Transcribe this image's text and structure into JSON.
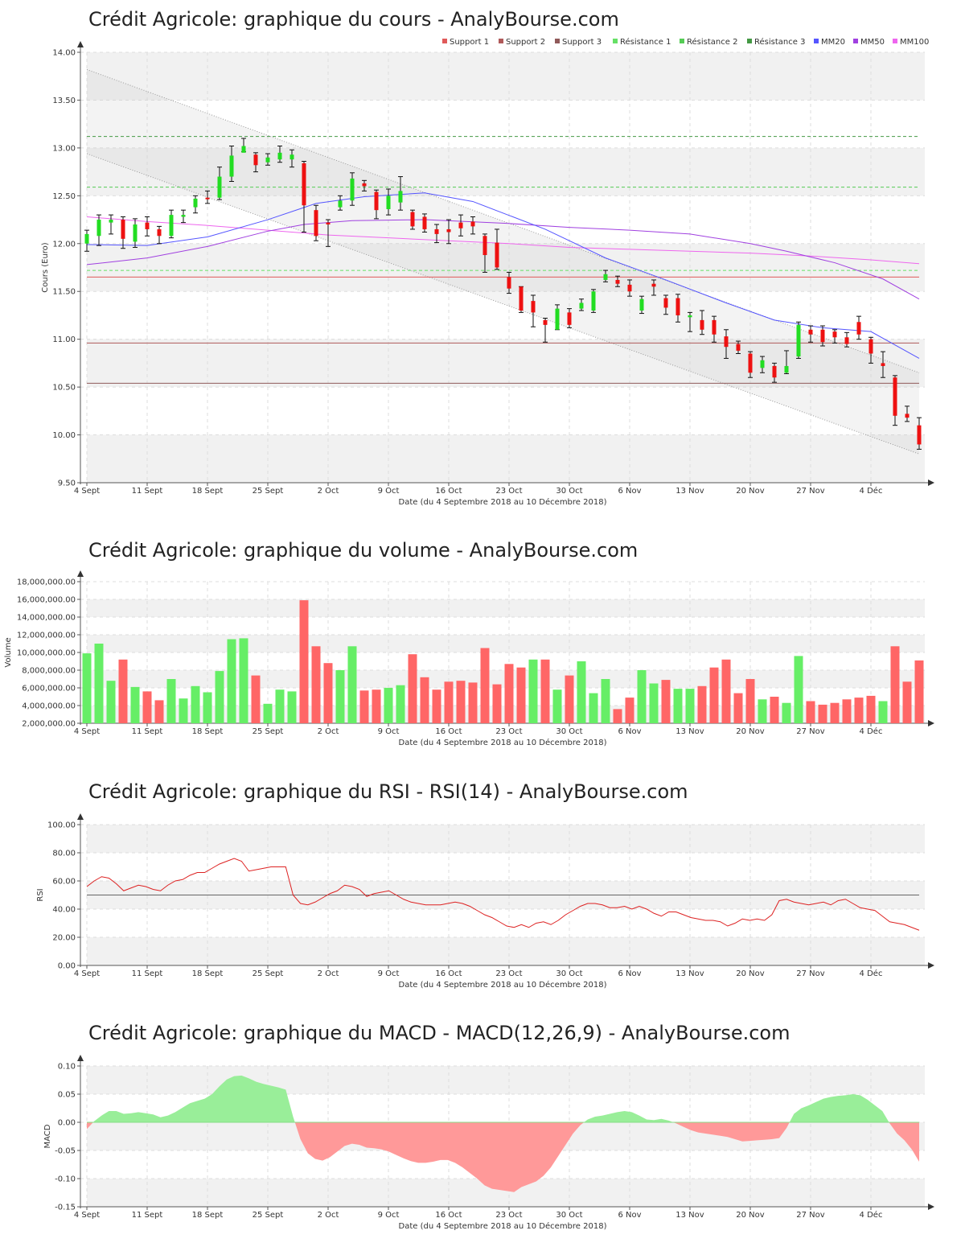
{
  "chart_data": [
    {
      "type": "candlestick",
      "title": "Crédit Agricole: graphique du cours - AnalyBourse.com",
      "xlabel": "Date (du 4 Septembre 2018 au 10 Décembre 2018)",
      "ylabel": "Cours (Euro)",
      "ylim": [
        9.5,
        14.0
      ],
      "yticks": [
        "9.50",
        "10.00",
        "10.50",
        "11.00",
        "11.50",
        "12.00",
        "12.50",
        "13.00",
        "13.50",
        "14.00"
      ],
      "xticks": [
        "4 Sept",
        "11 Sept",
        "18 Sept",
        "25 Sept",
        "2 Oct",
        "9 Oct",
        "16 Oct",
        "23 Oct",
        "30 Oct",
        "6 Nov",
        "13 Nov",
        "20 Nov",
        "27 Nov",
        "4 Déc"
      ],
      "legend": [
        {
          "name": "Support 1",
          "color": "#e05a5a"
        },
        {
          "name": "Support 2",
          "color": "#b05a5a"
        },
        {
          "name": "Support 3",
          "color": "#905a5a"
        },
        {
          "name": "Résistance 1",
          "color": "#66e066"
        },
        {
          "name": "Résistance 2",
          "color": "#55cc55"
        },
        {
          "name": "Résistance 3",
          "color": "#449944"
        },
        {
          "name": "MM20",
          "color": "#5555ff"
        },
        {
          "name": "MM50",
          "color": "#a040e0"
        },
        {
          "name": "MM100",
          "color": "#ee66ee"
        }
      ],
      "levels": {
        "support_1": 11.65,
        "support_2": 10.96,
        "support_3": 10.54,
        "resistance_1": 11.72,
        "resistance_2": 12.59,
        "resistance_3": 13.12
      },
      "colors": {
        "up": "#22dd22",
        "down": "#ee1111"
      },
      "candles": [
        [
          12.0,
          12.1,
          12.14,
          11.92
        ],
        [
          12.08,
          12.25,
          12.3,
          11.98
        ],
        [
          12.22,
          12.25,
          12.3,
          12.1
        ],
        [
          12.25,
          12.05,
          12.28,
          11.95
        ],
        [
          12.02,
          12.2,
          12.26,
          11.96
        ],
        [
          12.22,
          12.15,
          12.28,
          12.08
        ],
        [
          12.15,
          12.08,
          12.18,
          12.0
        ],
        [
          12.08,
          12.3,
          12.35,
          12.06
        ],
        [
          12.28,
          12.3,
          12.35,
          12.22
        ],
        [
          12.38,
          12.47,
          12.5,
          12.32
        ],
        [
          12.48,
          12.47,
          12.55,
          12.42
        ],
        [
          12.48,
          12.7,
          12.8,
          12.46
        ],
        [
          12.7,
          12.92,
          13.02,
          12.65
        ],
        [
          12.95,
          13.02,
          13.1,
          12.96
        ],
        [
          12.93,
          12.82,
          12.95,
          12.75
        ],
        [
          12.85,
          12.9,
          12.94,
          12.82
        ],
        [
          12.88,
          12.95,
          13.02,
          12.85
        ],
        [
          12.88,
          12.93,
          12.98,
          12.8
        ],
        [
          12.84,
          12.4,
          12.86,
          12.12
        ],
        [
          12.35,
          12.08,
          12.4,
          12.03
        ],
        [
          12.22,
          12.2,
          12.25,
          11.97
        ],
        [
          12.38,
          12.45,
          12.5,
          12.35
        ],
        [
          12.45,
          12.68,
          12.74,
          12.4
        ],
        [
          12.63,
          12.6,
          12.66,
          12.55
        ],
        [
          12.54,
          12.35,
          12.56,
          12.26
        ],
        [
          12.36,
          12.5,
          12.57,
          12.3
        ],
        [
          12.43,
          12.55,
          12.7,
          12.35
        ],
        [
          12.33,
          12.18,
          12.35,
          12.15
        ],
        [
          12.28,
          12.15,
          12.31,
          12.12
        ],
        [
          12.15,
          12.1,
          12.2,
          12.01
        ],
        [
          12.15,
          12.12,
          12.25,
          12.0
        ],
        [
          12.22,
          12.16,
          12.3,
          12.08
        ],
        [
          12.23,
          12.18,
          12.28,
          12.1
        ],
        [
          12.08,
          11.88,
          12.1,
          11.7
        ],
        [
          12.01,
          11.75,
          12.15,
          11.73
        ],
        [
          11.65,
          11.53,
          11.7,
          11.48
        ],
        [
          11.55,
          11.3,
          11.55,
          11.28
        ],
        [
          11.4,
          11.28,
          11.46,
          11.13
        ],
        [
          11.2,
          11.15,
          11.22,
          10.97
        ],
        [
          11.1,
          11.32,
          11.36,
          11.1
        ],
        [
          11.28,
          11.15,
          11.32,
          11.12
        ],
        [
          11.32,
          11.38,
          11.42,
          11.3
        ],
        [
          11.3,
          11.5,
          11.52,
          11.28
        ],
        [
          11.62,
          11.68,
          11.72,
          11.6
        ],
        [
          11.62,
          11.58,
          11.66,
          11.55
        ],
        [
          11.57,
          11.5,
          11.62,
          11.45
        ],
        [
          11.3,
          11.42,
          11.45,
          11.27
        ],
        [
          11.58,
          11.55,
          11.62,
          11.46
        ],
        [
          11.43,
          11.33,
          11.46,
          11.26
        ],
        [
          11.43,
          11.25,
          11.47,
          11.18
        ],
        [
          11.23,
          11.25,
          11.28,
          11.08
        ],
        [
          11.2,
          11.1,
          11.3,
          11.05
        ],
        [
          11.2,
          11.05,
          11.24,
          10.97
        ],
        [
          11.03,
          10.92,
          11.1,
          10.8
        ],
        [
          10.95,
          10.88,
          10.98,
          10.85
        ],
        [
          10.85,
          10.65,
          10.87,
          10.6
        ],
        [
          10.7,
          10.78,
          10.82,
          10.65
        ],
        [
          10.72,
          10.6,
          10.75,
          10.55
        ],
        [
          10.65,
          10.72,
          10.88,
          10.64
        ],
        [
          10.82,
          11.15,
          11.18,
          10.8
        ],
        [
          11.1,
          11.05,
          11.14,
          10.97
        ],
        [
          11.1,
          10.97,
          11.14,
          10.93
        ],
        [
          11.08,
          11.02,
          11.1,
          10.96
        ],
        [
          11.02,
          10.95,
          11.07,
          10.92
        ],
        [
          11.18,
          11.05,
          11.24,
          11.0
        ],
        [
          11.0,
          10.85,
          11.02,
          10.75
        ],
        [
          10.75,
          10.72,
          10.87,
          10.6
        ],
        [
          10.6,
          10.2,
          10.62,
          10.1
        ],
        [
          10.22,
          10.18,
          10.3,
          10.14
        ],
        [
          10.1,
          9.9,
          10.18,
          9.85
        ]
      ],
      "ma20": [
        [
          0,
          11.99
        ],
        [
          5,
          11.98
        ],
        [
          10,
          12.07
        ],
        [
          15,
          12.25
        ],
        [
          19,
          12.42
        ],
        [
          23,
          12.49
        ],
        [
          28,
          12.53
        ],
        [
          32,
          12.44
        ],
        [
          38,
          12.15
        ],
        [
          43,
          11.85
        ],
        [
          48,
          11.62
        ],
        [
          53,
          11.38
        ],
        [
          57,
          11.2
        ],
        [
          61,
          11.12
        ],
        [
          65,
          11.08
        ],
        [
          69,
          10.8
        ]
      ],
      "ma50": [
        [
          0,
          11.78
        ],
        [
          5,
          11.85
        ],
        [
          10,
          11.97
        ],
        [
          15,
          12.13
        ],
        [
          18,
          12.2
        ],
        [
          22,
          12.24
        ],
        [
          28,
          12.25
        ],
        [
          35,
          12.21
        ],
        [
          40,
          12.17
        ],
        [
          45,
          12.14
        ],
        [
          50,
          12.1
        ],
        [
          55,
          12.0
        ],
        [
          58,
          11.92
        ],
        [
          62,
          11.8
        ],
        [
          66,
          11.63
        ],
        [
          69,
          11.42
        ]
      ],
      "ma100": [
        [
          0,
          12.28
        ],
        [
          5,
          12.23
        ],
        [
          10,
          12.19
        ],
        [
          15,
          12.14
        ],
        [
          20,
          12.09
        ],
        [
          25,
          12.06
        ],
        [
          30,
          12.03
        ],
        [
          35,
          12.0
        ],
        [
          40,
          11.96
        ],
        [
          45,
          11.94
        ],
        [
          50,
          11.92
        ],
        [
          55,
          11.9
        ],
        [
          60,
          11.87
        ],
        [
          65,
          11.83
        ],
        [
          69,
          11.79
        ]
      ],
      "channel": {
        "upper": [
          [
            0,
            13.82
          ],
          [
            69,
            10.65
          ]
        ],
        "lower": [
          [
            0,
            12.94
          ],
          [
            69,
            9.8
          ]
        ]
      }
    },
    {
      "type": "bar",
      "title": "Crédit Agricole: graphique du volume - AnalyBourse.com",
      "xlabel": "Date (du 4 Septembre 2018 au 10 Décembre 2018)",
      "ylabel": "Volume",
      "ylim": [
        2000000,
        18000000
      ],
      "yticks": [
        "2,000,000.00",
        "4,000,000.00",
        "6,000,000.00",
        "8,000,000.00",
        "10,000,000.00",
        "12,000,000.00",
        "14,000,000.00",
        "16,000,000.00",
        "18,000,000.00"
      ],
      "xticks": [
        "4 Sept",
        "11 Sept",
        "18 Sept",
        "25 Sept",
        "2 Oct",
        "9 Oct",
        "16 Oct",
        "23 Oct",
        "30 Oct",
        "6 Nov",
        "13 Nov",
        "20 Nov",
        "27 Nov",
        "4 Déc"
      ],
      "colors": {
        "up": "#66ee66",
        "down": "#ff6666"
      },
      "values": [
        9900000,
        11000000,
        6800000,
        9200000,
        6100000,
        5600000,
        4600000,
        7000000,
        4800000,
        6200000,
        5500000,
        7900000,
        11500000,
        11600000,
        7400000,
        4200000,
        5800000,
        5600000,
        15900000,
        10700000,
        8800000,
        8000000,
        10700000,
        5700000,
        5800000,
        6000000,
        6300000,
        9800000,
        7200000,
        5800000,
        6700000,
        6800000,
        6600000,
        10500000,
        6400000,
        8700000,
        8300000,
        9200000,
        9200000,
        5800000,
        7400000,
        9000000,
        5400000,
        7000000,
        3600000,
        4900000,
        8000000,
        6500000,
        6900000,
        5900000,
        5900000,
        6200000,
        8300000,
        9200000,
        5400000,
        7000000,
        4700000,
        5000000,
        4300000,
        9600000,
        4500000,
        4100000,
        4300000,
        4700000,
        4900000,
        5100000,
        4500000,
        10700000,
        6700000,
        9100000
      ],
      "up": [
        true,
        true,
        true,
        false,
        true,
        false,
        false,
        true,
        true,
        true,
        true,
        true,
        true,
        true,
        false,
        true,
        true,
        true,
        false,
        false,
        false,
        true,
        true,
        false,
        false,
        true,
        true,
        false,
        false,
        false,
        false,
        false,
        false,
        false,
        false,
        false,
        false,
        true,
        false,
        true,
        false,
        true,
        true,
        true,
        false,
        false,
        true,
        true,
        false,
        true,
        true,
        false,
        false,
        false,
        false,
        false,
        true,
        false,
        true,
        true,
        false,
        false,
        false,
        false,
        false,
        false,
        true,
        false,
        false,
        false
      ]
    },
    {
      "type": "line",
      "title": "Crédit Agricole: graphique du RSI - RSI(14) - AnalyBourse.com",
      "xlabel": "Date (du 4 Septembre 2018 au 10 Décembre 2018)",
      "ylabel": "RSI",
      "ylim": [
        0,
        100
      ],
      "yticks": [
        "0.00",
        "20.00",
        "40.00",
        "60.00",
        "80.00",
        "100.00"
      ],
      "xticks": [
        "4 Sept",
        "11 Sept",
        "18 Sept",
        "25 Sept",
        "2 Oct",
        "9 Oct",
        "16 Oct",
        "23 Oct",
        "30 Oct",
        "6 Nov",
        "13 Nov",
        "20 Nov",
        "27 Nov",
        "4 Déc"
      ],
      "reference_line": 50,
      "series": [
        {
          "color": "#dd2222",
          "values": [
            56,
            60,
            63,
            62,
            58,
            53,
            55,
            57,
            56,
            54,
            53,
            57,
            60,
            61,
            64,
            66,
            66,
            69,
            72,
            74,
            76,
            74,
            67,
            68,
            69,
            70,
            70,
            70,
            50,
            44,
            43,
            45,
            48,
            51,
            53,
            57,
            56,
            54,
            49,
            51,
            52,
            53,
            50,
            47,
            45,
            44,
            43,
            43,
            43,
            44,
            45,
            44,
            42,
            39,
            36,
            34,
            31,
            28,
            27,
            29,
            27,
            30,
            31,
            29,
            32,
            36,
            39,
            42,
            44,
            44,
            43,
            41,
            41,
            42,
            40,
            42,
            40,
            37,
            35,
            38,
            38,
            36,
            34,
            33,
            32,
            32,
            31,
            28,
            30,
            33,
            32,
            33,
            32,
            36,
            46,
            47,
            45,
            44,
            43,
            44,
            45,
            43,
            46,
            47,
            44,
            41,
            40,
            39,
            35,
            31,
            30,
            29,
            27,
            25
          ]
        }
      ]
    },
    {
      "type": "area",
      "title": "Crédit Agricole: graphique du MACD - MACD(12,26,9) - AnalyBourse.com",
      "xlabel": "Date (du 4 Septembre 2018 au 10 Décembre 2018)",
      "ylabel": "MACD",
      "ylim": [
        -0.15,
        0.1
      ],
      "yticks": [
        "-0.15",
        "-0.10",
        "-0.05",
        "0.00",
        "0.05",
        "0.10"
      ],
      "xticks": [
        "4 Sept",
        "11 Sept",
        "18 Sept",
        "25 Sept",
        "2 Oct",
        "9 Oct",
        "16 Oct",
        "23 Oct",
        "30 Oct",
        "6 Nov",
        "13 Nov",
        "20 Nov",
        "27 Nov",
        "4 Déc"
      ],
      "colors": {
        "positive": "#99ee99",
        "negative": "#ff9999"
      },
      "values": [
        -0.012,
        0.002,
        0.012,
        0.02,
        0.02,
        0.015,
        0.016,
        0.018,
        0.016,
        0.014,
        0.009,
        0.012,
        0.018,
        0.026,
        0.034,
        0.038,
        0.042,
        0.05,
        0.064,
        0.076,
        0.082,
        0.083,
        0.078,
        0.072,
        0.068,
        0.065,
        0.062,
        0.058,
        0.01,
        -0.03,
        -0.055,
        -0.065,
        -0.068,
        -0.062,
        -0.052,
        -0.042,
        -0.038,
        -0.04,
        -0.045,
        -0.046,
        -0.048,
        -0.052,
        -0.058,
        -0.064,
        -0.069,
        -0.072,
        -0.072,
        -0.07,
        -0.067,
        -0.067,
        -0.072,
        -0.08,
        -0.09,
        -0.1,
        -0.112,
        -0.118,
        -0.12,
        -0.122,
        -0.124,
        -0.115,
        -0.11,
        -0.105,
        -0.095,
        -0.08,
        -0.06,
        -0.04,
        -0.02,
        -0.005,
        0.005,
        0.01,
        0.012,
        0.015,
        0.018,
        0.02,
        0.018,
        0.012,
        0.005,
        0.004,
        0.006,
        0.003,
        -0.002,
        -0.008,
        -0.014,
        -0.018,
        -0.02,
        -0.022,
        -0.024,
        -0.026,
        -0.03,
        -0.034,
        -0.033,
        -0.032,
        -0.031,
        -0.03,
        -0.028,
        -0.01,
        0.015,
        0.025,
        0.03,
        0.036,
        0.042,
        0.045,
        0.047,
        0.048,
        0.05,
        0.048,
        0.04,
        0.03,
        0.02,
        -0.002,
        -0.02,
        -0.032,
        -0.048,
        -0.07
      ]
    }
  ]
}
